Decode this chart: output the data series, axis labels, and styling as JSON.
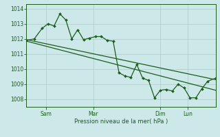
{
  "title": "",
  "xlabel": "Pression niveau de la mer( hPa )",
  "ylabel": "",
  "bg_color": "#cce8e8",
  "grid_color": "#aacccc",
  "line_color": "#1a5c1a",
  "ylim": [
    1007.5,
    1014.3
  ],
  "xlim": [
    0,
    96
  ],
  "yticks": [
    1008,
    1009,
    1010,
    1011,
    1012,
    1013,
    1014
  ],
  "xtick_positions": [
    10,
    34,
    68,
    82
  ],
  "xtick_labels": [
    "Sam",
    "Mar",
    "Dim",
    "Lun"
  ],
  "trend_x": [
    0,
    96
  ],
  "trend_y": [
    1011.95,
    1009.3
  ],
  "trend2_x": [
    0,
    96
  ],
  "trend2_y": [
    1011.85,
    1008.6
  ],
  "jagged_x": [
    0,
    4,
    8,
    11,
    14,
    17,
    20,
    23,
    26,
    29,
    32,
    35,
    38,
    41,
    44,
    47,
    50,
    53,
    56,
    59,
    62,
    65,
    68,
    71,
    74,
    77,
    80,
    83,
    86,
    89,
    92,
    96
  ],
  "jagged_y": [
    1011.9,
    1012.0,
    1012.7,
    1013.0,
    1012.85,
    1013.65,
    1013.25,
    1012.0,
    1012.6,
    1011.95,
    1012.05,
    1012.15,
    1012.15,
    1011.9,
    1011.85,
    1009.75,
    1009.55,
    1009.45,
    1010.3,
    1009.4,
    1009.25,
    1008.1,
    1008.6,
    1008.65,
    1008.55,
    1009.0,
    1008.75,
    1008.1,
    1008.1,
    1008.7,
    1009.2,
    1009.4
  ],
  "marker_size": 2.0,
  "line_width": 0.9
}
